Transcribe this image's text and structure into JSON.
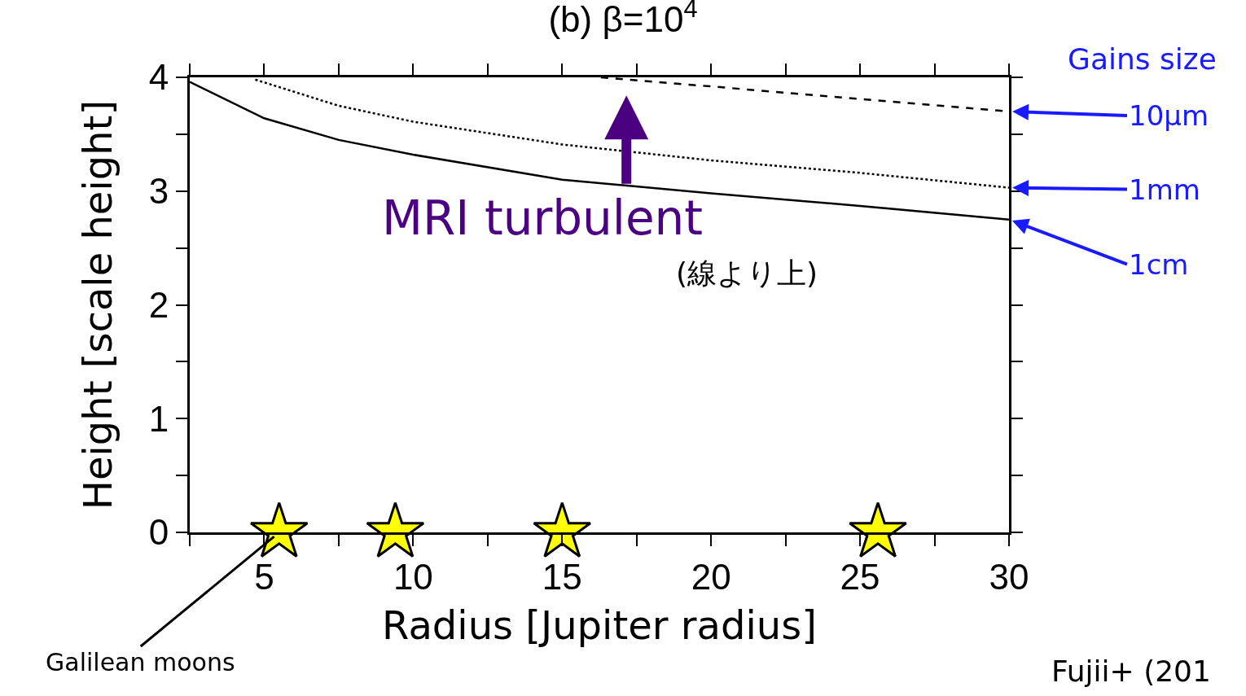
{
  "chart_data": {
    "type": "line",
    "title": "(b) β=10$^{4}$",
    "xlabel": "Radius [Jupiter radius]",
    "ylabel": "Height [scale height]",
    "legend_title": "Gains size",
    "xlim": [
      2.5,
      30
    ],
    "ylim": [
      0,
      4
    ],
    "xticks": [
      {
        "value": 2.5,
        "label": null
      },
      5,
      {
        "value": 7.5,
        "label": null
      },
      10,
      {
        "value": 12.5,
        "label": null
      },
      15,
      {
        "value": 17.5,
        "label": null
      },
      20,
      {
        "value": 22.5,
        "label": null
      },
      25,
      {
        "value": 27.5,
        "label": null
      },
      30
    ],
    "yticks": [
      0,
      {
        "value": 0.5,
        "label": null
      },
      1,
      {
        "value": 1.5,
        "label": null
      },
      2,
      {
        "value": 2.5,
        "label": null
      },
      3,
      {
        "value": 3.5,
        "label": null
      },
      4
    ],
    "legend": false,
    "series": [
      {
        "name": "10μm",
        "color": "#000000",
        "line_style": "dashed",
        "x": [
          16.3,
          20,
          25,
          30
        ],
        "values": [
          4.0,
          3.92,
          3.81,
          3.7
        ]
      },
      {
        "name": "1mm",
        "color": "#000000",
        "line_style": "dotted",
        "x": [
          4.7,
          7.5,
          10,
          15,
          20,
          25,
          30
        ],
        "values": [
          3.98,
          3.75,
          3.61,
          3.41,
          3.27,
          3.16,
          3.03
        ]
      },
      {
        "name": "1cm",
        "color": "#000000",
        "line_style": "solid",
        "x": [
          2.5,
          5,
          7.5,
          10,
          15,
          20,
          25,
          30
        ],
        "values": [
          3.96,
          3.64,
          3.45,
          3.32,
          3.1,
          2.98,
          2.87,
          2.75
        ]
      },
      {
        "type": "scatter",
        "marker": "star",
        "color": "#ffff00",
        "x": [
          5.5,
          9.4,
          15,
          25.6
        ],
        "values": [
          0,
          0,
          0,
          0
        ]
      }
    ],
    "annotations": [
      {
        "text": "Galilean moons",
        "x": 5.5,
        "y": 0
      },
      "MRI turbulent",
      "(線より上)",
      "Fujii+ (201"
    ]
  }
}
